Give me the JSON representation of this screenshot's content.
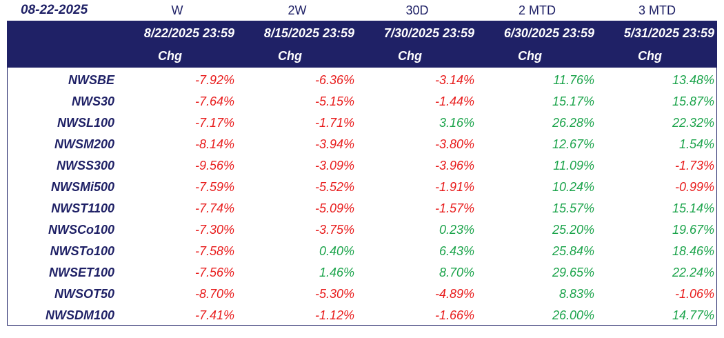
{
  "date_label": "08-22-2025",
  "periods": [
    "W",
    "2W",
    "30D",
    "2 MTD",
    "3 MTD"
  ],
  "headers": [
    {
      "date": "8/22/2025 23:59",
      "chg": "Chg"
    },
    {
      "date": "8/15/2025 23:59",
      "chg": "Chg"
    },
    {
      "date": "7/30/2025 23:59",
      "chg": "Chg"
    },
    {
      "date": "6/30/2025 23:59",
      "chg": "Chg"
    },
    {
      "date": "5/31/2025 23:59",
      "chg": "Chg"
    }
  ],
  "colors": {
    "header_bg": "#1f2166",
    "negative": "#e81b1b",
    "positive": "#1aa34a"
  },
  "chart_data": {
    "type": "table",
    "columns": [
      "W",
      "2W",
      "30D",
      "2 MTD",
      "3 MTD"
    ],
    "rows": [
      {
        "name": "NWSBE",
        "values": [
          "-7.92%",
          "-6.36%",
          "-3.14%",
          "11.76%",
          "13.48%"
        ]
      },
      {
        "name": "NWS30",
        "values": [
          "-7.64%",
          "-5.15%",
          "-1.44%",
          "15.17%",
          "15.87%"
        ]
      },
      {
        "name": "NWSL100",
        "values": [
          "-7.17%",
          "-1.71%",
          "3.16%",
          "26.28%",
          "22.32%"
        ]
      },
      {
        "name": "NWSM200",
        "values": [
          "-8.14%",
          "-3.94%",
          "-3.80%",
          "12.67%",
          "1.54%"
        ]
      },
      {
        "name": "NWSS300",
        "values": [
          "-9.56%",
          "-3.09%",
          "-3.96%",
          "11.09%",
          "-1.73%"
        ]
      },
      {
        "name": "NWSMi500",
        "values": [
          "-7.59%",
          "-5.52%",
          "-1.91%",
          "10.24%",
          "-0.99%"
        ]
      },
      {
        "name": "NWST1100",
        "values": [
          "-7.74%",
          "-5.09%",
          "-1.57%",
          "15.57%",
          "15.14%"
        ]
      },
      {
        "name": "NWSCo100",
        "values": [
          "-7.30%",
          "-3.75%",
          "0.23%",
          "25.20%",
          "19.67%"
        ]
      },
      {
        "name": "NWSTo100",
        "values": [
          "-7.58%",
          "0.40%",
          "6.43%",
          "25.84%",
          "18.46%"
        ]
      },
      {
        "name": "NWSET100",
        "values": [
          "-7.56%",
          "1.46%",
          "8.70%",
          "29.65%",
          "22.24%"
        ]
      },
      {
        "name": "NWSOT50",
        "values": [
          "-8.70%",
          "-5.30%",
          "-4.89%",
          "8.83%",
          "-1.06%"
        ]
      },
      {
        "name": "NWSDM100",
        "values": [
          "-7.41%",
          "-1.12%",
          "-1.66%",
          "26.00%",
          "14.77%"
        ]
      }
    ]
  }
}
